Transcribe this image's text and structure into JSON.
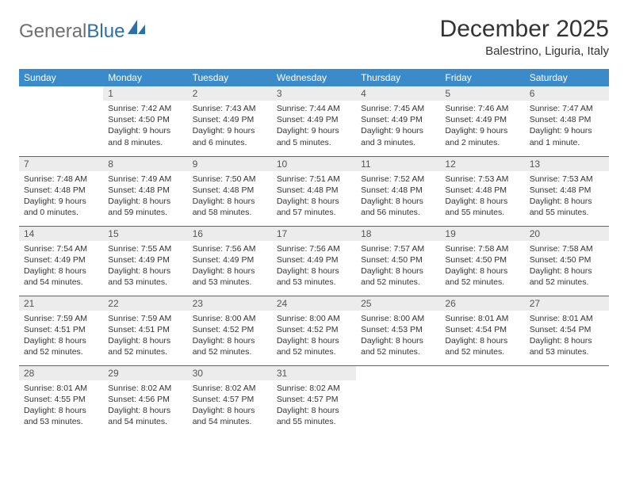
{
  "logo": {
    "part1": "General",
    "part2": "Blue"
  },
  "title": "December 2025",
  "location": "Balestrino, Liguria, Italy",
  "colors": {
    "header_bg": "#3b8bca",
    "header_text": "#ffffff",
    "daynum_bg": "#ececec",
    "row_divider": "#2f6fa8",
    "logo_gray": "#6f6f6f",
    "logo_blue": "#2f6fa8"
  },
  "columns": [
    "Sunday",
    "Monday",
    "Tuesday",
    "Wednesday",
    "Thursday",
    "Friday",
    "Saturday"
  ],
  "weeks": [
    [
      {
        "empty": true
      },
      {
        "n": "1",
        "text": "Sunrise: 7:42 AM\nSunset: 4:50 PM\nDaylight: 9 hours\nand 8 minutes."
      },
      {
        "n": "2",
        "text": "Sunrise: 7:43 AM\nSunset: 4:49 PM\nDaylight: 9 hours\nand 6 minutes."
      },
      {
        "n": "3",
        "text": "Sunrise: 7:44 AM\nSunset: 4:49 PM\nDaylight: 9 hours\nand 5 minutes."
      },
      {
        "n": "4",
        "text": "Sunrise: 7:45 AM\nSunset: 4:49 PM\nDaylight: 9 hours\nand 3 minutes."
      },
      {
        "n": "5",
        "text": "Sunrise: 7:46 AM\nSunset: 4:49 PM\nDaylight: 9 hours\nand 2 minutes."
      },
      {
        "n": "6",
        "text": "Sunrise: 7:47 AM\nSunset: 4:48 PM\nDaylight: 9 hours\nand 1 minute."
      }
    ],
    [
      {
        "n": "7",
        "text": "Sunrise: 7:48 AM\nSunset: 4:48 PM\nDaylight: 9 hours\nand 0 minutes."
      },
      {
        "n": "8",
        "text": "Sunrise: 7:49 AM\nSunset: 4:48 PM\nDaylight: 8 hours\nand 59 minutes."
      },
      {
        "n": "9",
        "text": "Sunrise: 7:50 AM\nSunset: 4:48 PM\nDaylight: 8 hours\nand 58 minutes."
      },
      {
        "n": "10",
        "text": "Sunrise: 7:51 AM\nSunset: 4:48 PM\nDaylight: 8 hours\nand 57 minutes."
      },
      {
        "n": "11",
        "text": "Sunrise: 7:52 AM\nSunset: 4:48 PM\nDaylight: 8 hours\nand 56 minutes."
      },
      {
        "n": "12",
        "text": "Sunrise: 7:53 AM\nSunset: 4:48 PM\nDaylight: 8 hours\nand 55 minutes."
      },
      {
        "n": "13",
        "text": "Sunrise: 7:53 AM\nSunset: 4:48 PM\nDaylight: 8 hours\nand 55 minutes."
      }
    ],
    [
      {
        "n": "14",
        "text": "Sunrise: 7:54 AM\nSunset: 4:49 PM\nDaylight: 8 hours\nand 54 minutes."
      },
      {
        "n": "15",
        "text": "Sunrise: 7:55 AM\nSunset: 4:49 PM\nDaylight: 8 hours\nand 53 minutes."
      },
      {
        "n": "16",
        "text": "Sunrise: 7:56 AM\nSunset: 4:49 PM\nDaylight: 8 hours\nand 53 minutes."
      },
      {
        "n": "17",
        "text": "Sunrise: 7:56 AM\nSunset: 4:49 PM\nDaylight: 8 hours\nand 53 minutes."
      },
      {
        "n": "18",
        "text": "Sunrise: 7:57 AM\nSunset: 4:50 PM\nDaylight: 8 hours\nand 52 minutes."
      },
      {
        "n": "19",
        "text": "Sunrise: 7:58 AM\nSunset: 4:50 PM\nDaylight: 8 hours\nand 52 minutes."
      },
      {
        "n": "20",
        "text": "Sunrise: 7:58 AM\nSunset: 4:50 PM\nDaylight: 8 hours\nand 52 minutes."
      }
    ],
    [
      {
        "n": "21",
        "text": "Sunrise: 7:59 AM\nSunset: 4:51 PM\nDaylight: 8 hours\nand 52 minutes."
      },
      {
        "n": "22",
        "text": "Sunrise: 7:59 AM\nSunset: 4:51 PM\nDaylight: 8 hours\nand 52 minutes."
      },
      {
        "n": "23",
        "text": "Sunrise: 8:00 AM\nSunset: 4:52 PM\nDaylight: 8 hours\nand 52 minutes."
      },
      {
        "n": "24",
        "text": "Sunrise: 8:00 AM\nSunset: 4:52 PM\nDaylight: 8 hours\nand 52 minutes."
      },
      {
        "n": "25",
        "text": "Sunrise: 8:00 AM\nSunset: 4:53 PM\nDaylight: 8 hours\nand 52 minutes."
      },
      {
        "n": "26",
        "text": "Sunrise: 8:01 AM\nSunset: 4:54 PM\nDaylight: 8 hours\nand 52 minutes."
      },
      {
        "n": "27",
        "text": "Sunrise: 8:01 AM\nSunset: 4:54 PM\nDaylight: 8 hours\nand 53 minutes."
      }
    ],
    [
      {
        "n": "28",
        "text": "Sunrise: 8:01 AM\nSunset: 4:55 PM\nDaylight: 8 hours\nand 53 minutes."
      },
      {
        "n": "29",
        "text": "Sunrise: 8:02 AM\nSunset: 4:56 PM\nDaylight: 8 hours\nand 54 minutes."
      },
      {
        "n": "30",
        "text": "Sunrise: 8:02 AM\nSunset: 4:57 PM\nDaylight: 8 hours\nand 54 minutes."
      },
      {
        "n": "31",
        "text": "Sunrise: 8:02 AM\nSunset: 4:57 PM\nDaylight: 8 hours\nand 55 minutes."
      },
      {
        "empty": true
      },
      {
        "empty": true
      },
      {
        "empty": true
      }
    ]
  ]
}
